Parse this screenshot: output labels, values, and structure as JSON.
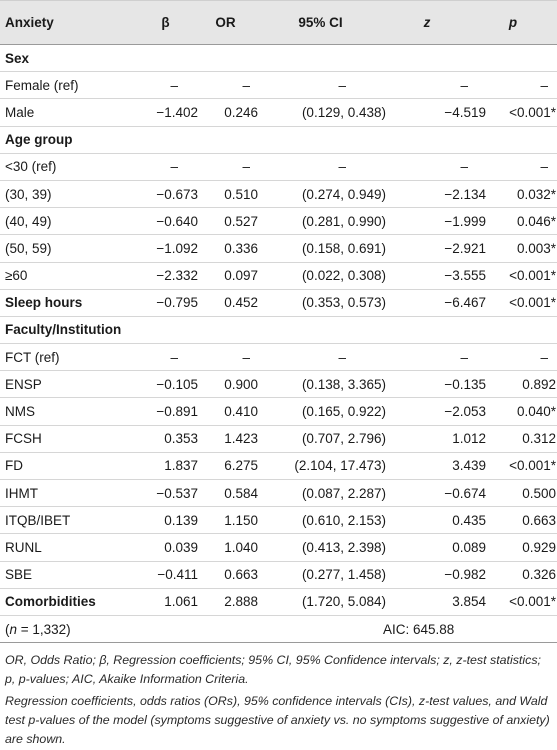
{
  "header": {
    "c0": "Anxiety",
    "c1": "β",
    "c2": "OR",
    "c3": "95% CI",
    "c4": "z",
    "c5": "p"
  },
  "rows": [
    {
      "type": "section",
      "label": "Sex"
    },
    {
      "type": "data",
      "label": "Female (ref)",
      "b": "–",
      "or": "–",
      "ci": "–",
      "z": "–",
      "p": "–"
    },
    {
      "type": "data",
      "label": "Male",
      "b": "−1.402",
      "or": "0.246",
      "ci": "(0.129, 0.438)",
      "z": "−4.519",
      "p": "<0.001*"
    },
    {
      "type": "section",
      "label": "Age group"
    },
    {
      "type": "data",
      "label": "<30 (ref)",
      "b": "–",
      "or": "–",
      "ci": "–",
      "z": "–",
      "p": "–"
    },
    {
      "type": "data",
      "label": "(30, 39)",
      "b": "−0.673",
      "or": "0.510",
      "ci": "(0.274, 0.949)",
      "z": "−2.134",
      "p": "0.032*"
    },
    {
      "type": "data",
      "label": "(40, 49)",
      "b": "−0.640",
      "or": "0.527",
      "ci": "(0.281, 0.990)",
      "z": "−1.999",
      "p": "0.046*"
    },
    {
      "type": "data",
      "label": "(50, 59)",
      "b": "−1.092",
      "or": "0.336",
      "ci": "(0.158, 0.691)",
      "z": "−2.921",
      "p": "0.003*"
    },
    {
      "type": "data",
      "label": "≥60",
      "b": "−2.332",
      "or": "0.097",
      "ci": "(0.022, 0.308)",
      "z": "−3.555",
      "p": "<0.001*"
    },
    {
      "type": "bolddata",
      "label": "Sleep hours",
      "b": "−0.795",
      "or": "0.452",
      "ci": "(0.353, 0.573)",
      "z": "−6.467",
      "p": "<0.001*"
    },
    {
      "type": "section",
      "label": "Faculty/Institution"
    },
    {
      "type": "data",
      "label": "FCT (ref)",
      "b": "–",
      "or": "–",
      "ci": "–",
      "z": "–",
      "p": "–"
    },
    {
      "type": "data",
      "label": "ENSP",
      "b": "−0.105",
      "or": "0.900",
      "ci": "(0.138, 3.365)",
      "z": "−0.135",
      "p": "0.892"
    },
    {
      "type": "data",
      "label": "NMS",
      "b": "−0.891",
      "or": "0.410",
      "ci": "(0.165, 0.922)",
      "z": "−2.053",
      "p": "0.040*"
    },
    {
      "type": "data",
      "label": "FCSH",
      "b": "0.353",
      "or": "1.423",
      "ci": "(0.707, 2.796)",
      "z": "1.012",
      "p": "0.312"
    },
    {
      "type": "data",
      "label": "FD",
      "b": "1.837",
      "or": "6.275",
      "ci": "(2.104, 17.473)",
      "z": "3.439",
      "p": "<0.001*"
    },
    {
      "type": "data",
      "label": "IHMT",
      "b": "−0.537",
      "or": "0.584",
      "ci": "(0.087, 2.287)",
      "z": "−0.674",
      "p": "0.500"
    },
    {
      "type": "data",
      "label": "ITQB/IBET",
      "b": "0.139",
      "or": "1.150",
      "ci": "(0.610, 2.153)",
      "z": "0.435",
      "p": "0.663"
    },
    {
      "type": "data",
      "label": "RUNL",
      "b": "0.039",
      "or": "1.040",
      "ci": "(0.413, 2.398)",
      "z": "0.089",
      "p": "0.929"
    },
    {
      "type": "data",
      "label": "SBE",
      "b": "−0.411",
      "or": "0.663",
      "ci": "(0.277, 1.458)",
      "z": "−0.982",
      "p": "0.326"
    },
    {
      "type": "bolddata",
      "label": "Comorbidities",
      "b": "1.061",
      "or": "2.888",
      "ci": "(1.720, 5.084)",
      "z": "3.854",
      "p": "<0.001*"
    }
  ],
  "summary": {
    "n_prefix": "(",
    "n_var": "n",
    "n_rest": " = 1,332)",
    "aic": "AIC: 645.88"
  },
  "footnotes": [
    "OR, Odds Ratio; β, Regression coefficients; 95% CI, 95% Confidence intervals; z, z-test statistics; p, p-values; AIC, Akaike Information Criteria.",
    "Regression coefficients, odds ratios (ORs), 95% confidence intervals (CIs), z-test values, and Wald test p-values of the model (symptoms suggestive of anxiety vs. no symptoms suggestive of anxiety) are shown."
  ]
}
